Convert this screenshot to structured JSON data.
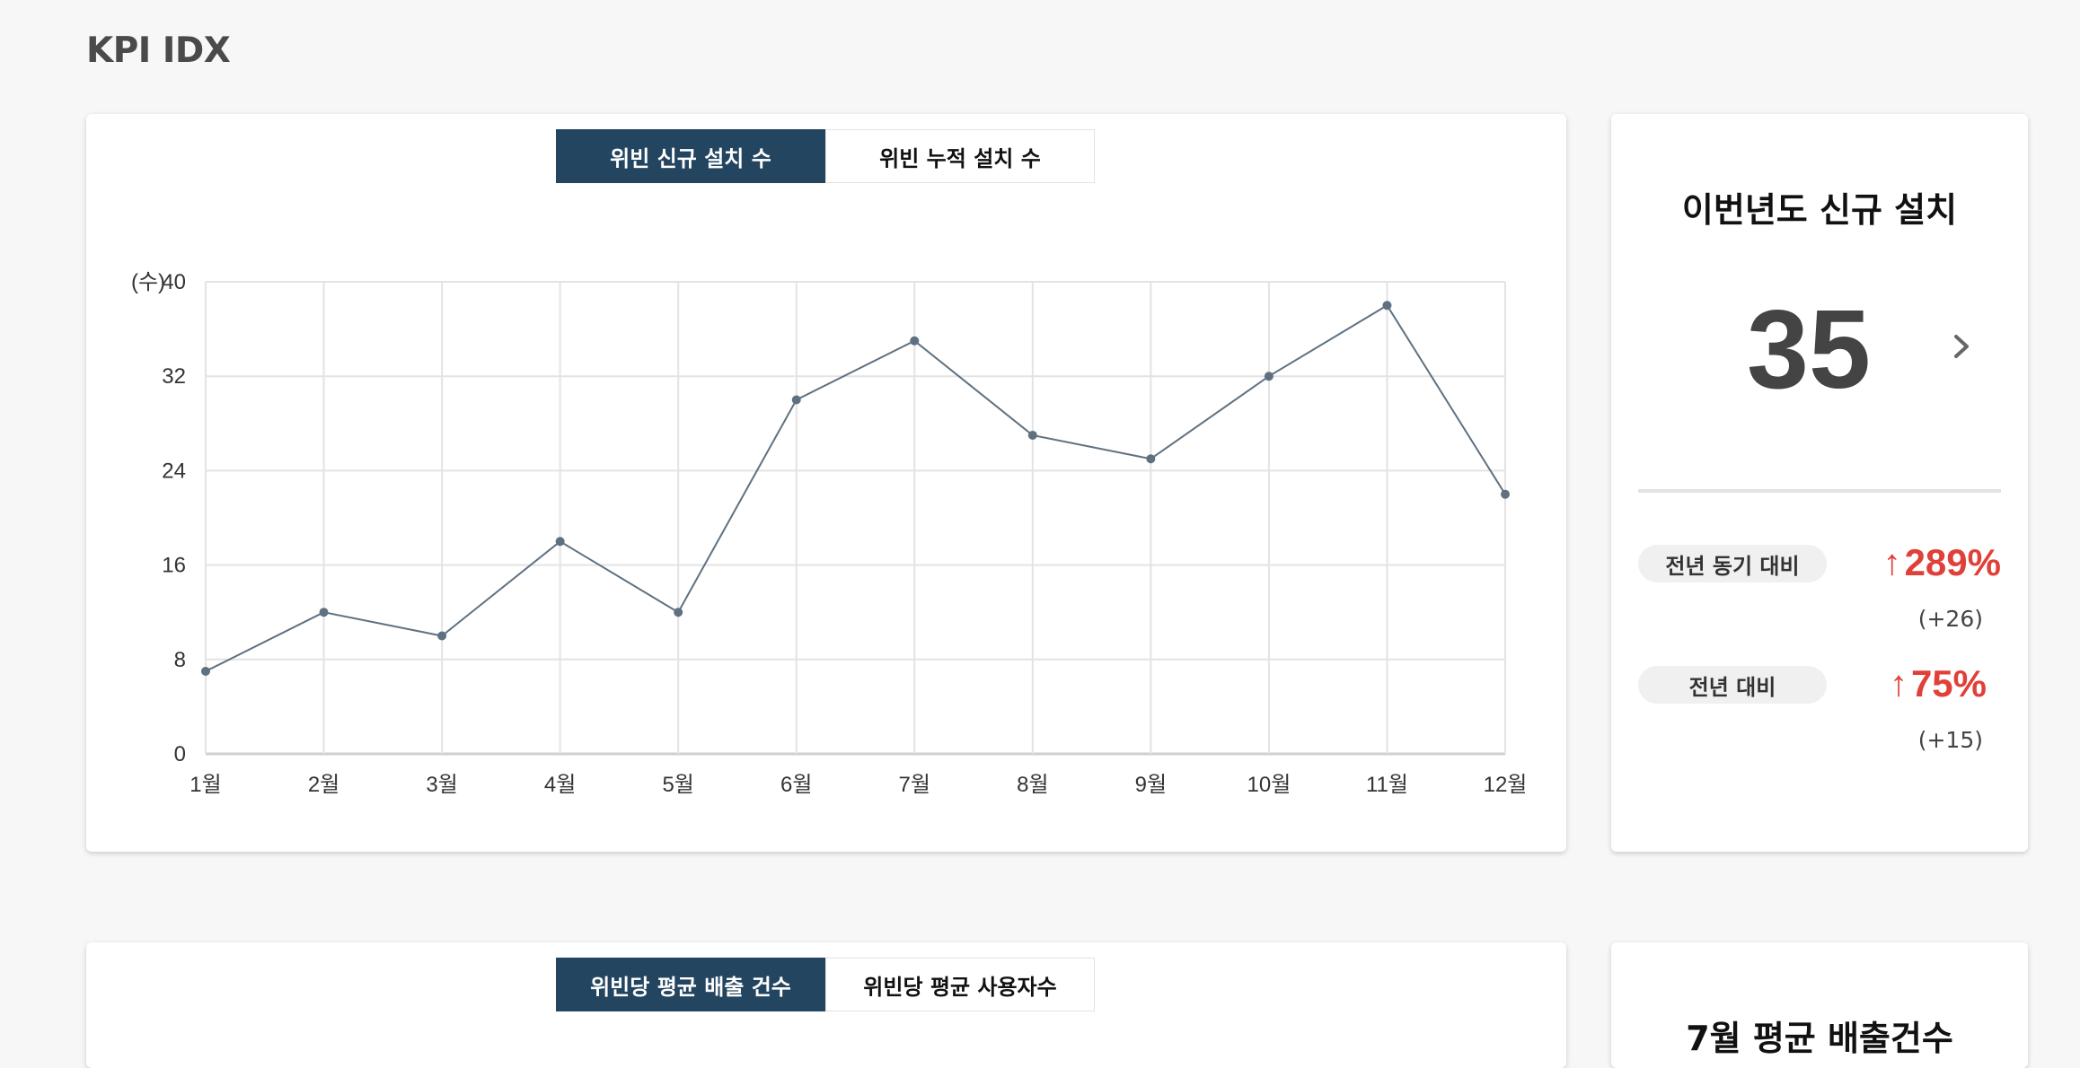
{
  "page": {
    "title": "KPI IDX"
  },
  "panel1": {
    "tabs": [
      {
        "label": "위빈 신규 설치 수",
        "active": true
      },
      {
        "label": "위빈 누적 설치 수",
        "active": false
      }
    ],
    "stat": {
      "title": "이번년도 신규 설치",
      "value": "35",
      "comparisons": [
        {
          "label": "전년 동기 대비",
          "percent": "289%",
          "direction": "up",
          "diff": "(+26)"
        },
        {
          "label": "전년 대비",
          "percent": "75%",
          "direction": "up",
          "diff": "(+15)"
        }
      ]
    }
  },
  "panel2": {
    "tabs": [
      {
        "label": "위빈당 평균 배출 건수",
        "active": true
      },
      {
        "label": "위빈당 평균 사용자수",
        "active": false
      }
    ],
    "stat": {
      "title": "7월 평균 배출건수"
    }
  },
  "colors": {
    "accent": "#234560",
    "up": "#e04038",
    "line": "#5f7180"
  },
  "chart_data": {
    "type": "line",
    "categories": [
      "1월",
      "2월",
      "3월",
      "4월",
      "5월",
      "6월",
      "7월",
      "8월",
      "9월",
      "10월",
      "11월",
      "12월"
    ],
    "values": [
      7,
      12,
      10,
      18,
      12,
      30,
      35,
      27,
      25,
      32,
      38,
      22
    ],
    "ylabel": "(수)",
    "ylim": [
      0,
      40
    ],
    "yticks": [
      0,
      8,
      16,
      24,
      32,
      40
    ],
    "grid": true
  }
}
